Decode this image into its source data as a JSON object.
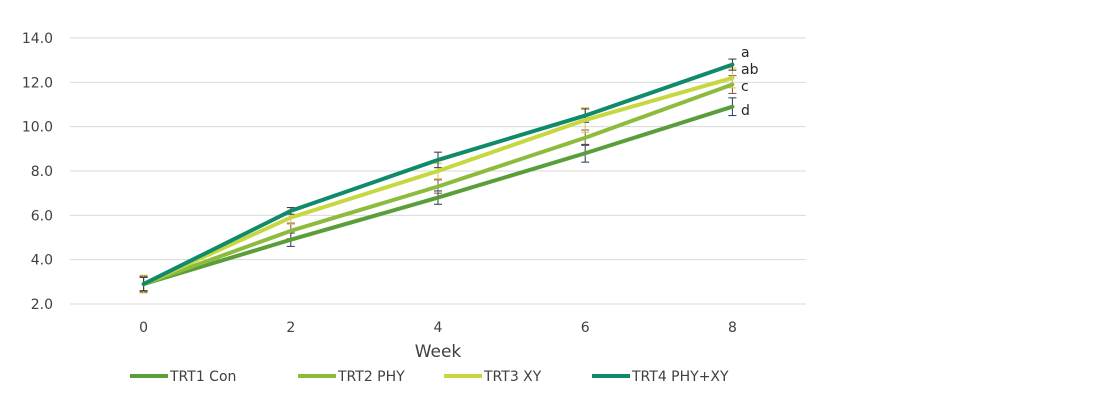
{
  "chart_data": {
    "type": "line",
    "title": "",
    "xlabel": "Week",
    "ylabel": "",
    "x": [
      0,
      2,
      4,
      6,
      8
    ],
    "x_tick_labels": [
      "0",
      "2",
      "4",
      "6",
      "8"
    ],
    "ylim": [
      2.0,
      14.0
    ],
    "y_ticks": [
      2.0,
      4.0,
      6.0,
      8.0,
      10.0,
      12.0,
      14.0
    ],
    "y_tick_labels": [
      "2.0",
      "4.0",
      "6.0",
      "8.0",
      "10.0",
      "12.0",
      "14.0"
    ],
    "grid": true,
    "legend_position": "bottom",
    "series": [
      {
        "name": "TRT1 Con",
        "color": "#5a9e3a",
        "values": [
          2.9,
          4.9,
          6.8,
          8.8,
          10.9
        ],
        "errors": [
          0.35,
          0.3,
          0.3,
          0.4,
          0.4
        ],
        "error_color": "#1f3a5a",
        "sig_label": "d"
      },
      {
        "name": "TRT2 PHY",
        "color": "#8dbb3e",
        "values": [
          2.9,
          5.3,
          7.3,
          9.5,
          11.9
        ],
        "errors": [
          0.35,
          0.35,
          0.3,
          0.35,
          0.4
        ],
        "error_color": "#7a5060",
        "sig_label": "c"
      },
      {
        "name": "TRT3 XY",
        "color": "#c6d740",
        "values": [
          2.9,
          5.9,
          8.0,
          10.3,
          12.2
        ],
        "errors": [
          0.4,
          0.3,
          0.35,
          0.55,
          0.45
        ],
        "error_color": "#e0c030",
        "sig_label": "ab"
      },
      {
        "name": "TRT4 PHY+XY",
        "color": "#0f8a6a",
        "values": [
          2.9,
          6.2,
          8.5,
          10.5,
          12.8
        ],
        "errors": [
          0.3,
          0.15,
          0.35,
          0.3,
          0.25
        ],
        "error_color": "#333333",
        "sig_label": "a"
      }
    ]
  }
}
